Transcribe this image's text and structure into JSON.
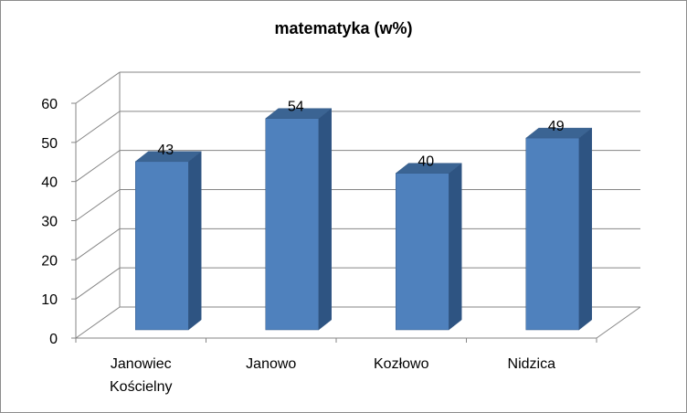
{
  "chart_data": {
    "type": "bar",
    "title": "matematyka (w%)",
    "xlabel": "",
    "ylabel": "",
    "categories": [
      [
        "Janowiec",
        "Kościelny"
      ],
      [
        "Janowo"
      ],
      [
        "Kozłowo"
      ],
      [
        "Nidzica"
      ]
    ],
    "values": [
      43,
      54,
      40,
      49
    ],
    "data_labels": [
      "43",
      "54",
      "40",
      "49"
    ],
    "ylim": [
      0,
      60
    ],
    "yticks": [
      0,
      10,
      20,
      30,
      40,
      50,
      60
    ],
    "ytick_labels": [
      "0",
      "10",
      "20",
      "30",
      "40",
      "50",
      "60"
    ],
    "grid": true,
    "style": "3d-column",
    "legend": "none",
    "colors": {
      "bar_front": "#4f81bd",
      "bar_side": "#2e5482",
      "bar_top": "#3b6493",
      "bar_edge": "#385d8a",
      "grid": "#868686"
    }
  }
}
